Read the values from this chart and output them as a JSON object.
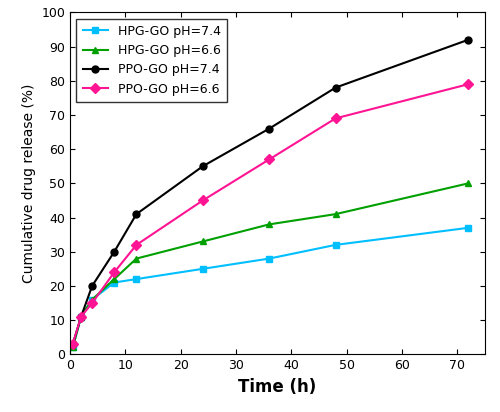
{
  "title": "",
  "xlabel": "Time (h)",
  "ylabel": "Cumulative drug release (%)",
  "xlim": [
    0,
    75
  ],
  "ylim": [
    0,
    100
  ],
  "xticks": [
    0,
    10,
    20,
    30,
    40,
    50,
    60,
    70
  ],
  "yticks": [
    0,
    10,
    20,
    30,
    40,
    50,
    60,
    70,
    80,
    90,
    100
  ],
  "series": [
    {
      "label": "HPG-GO pH=7.4",
      "color": "#00BFFF",
      "marker": "s",
      "x": [
        0.5,
        2,
        4,
        8,
        12,
        24,
        36,
        48,
        72
      ],
      "y": [
        2,
        11,
        16,
        21,
        22,
        25,
        28,
        32,
        37
      ]
    },
    {
      "label": "HPG-GO pH=6.6",
      "color": "#00A000",
      "marker": "^",
      "x": [
        0.5,
        2,
        4,
        8,
        12,
        24,
        36,
        48,
        72
      ],
      "y": [
        2,
        11,
        16,
        22,
        28,
        33,
        38,
        41,
        50
      ]
    },
    {
      "label": "PPO-GO pH=7.4",
      "color": "#000000",
      "marker": "o",
      "x": [
        0.5,
        2,
        4,
        8,
        12,
        24,
        36,
        48,
        72
      ],
      "y": [
        3,
        11,
        20,
        30,
        41,
        55,
        66,
        78,
        92
      ]
    },
    {
      "label": "PPO-GO pH=6.6",
      "color": "#FF1493",
      "marker": "D",
      "x": [
        0.5,
        2,
        4,
        8,
        12,
        24,
        36,
        48,
        72
      ],
      "y": [
        3,
        11,
        15,
        24,
        32,
        45,
        57,
        69,
        79
      ]
    }
  ],
  "legend_loc": "upper left",
  "markersize": 5,
  "linewidth": 1.5,
  "xlabel_fontsize": 12,
  "ylabel_fontsize": 10,
  "tick_fontsize": 9,
  "legend_fontsize": 9
}
